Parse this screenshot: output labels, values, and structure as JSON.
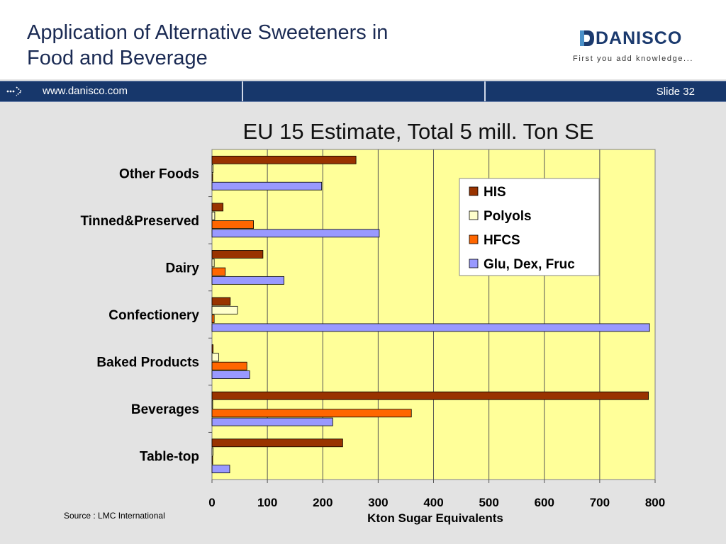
{
  "slide": {
    "title": "Application of Alternative Sweeteners in\nFood and Beverage",
    "brand": "DANISCO",
    "tagline": "First you add knowledge...",
    "url": "www.danisco.com",
    "slide_number": "Slide 32",
    "source": "Source : LMC International"
  },
  "colors": {
    "nav_bar": "#17376b",
    "plot_background": "#ffff99",
    "his": "#993300",
    "polyols": "#ffffcc",
    "hfcs": "#ff6600",
    "glu": "#9999ff"
  },
  "chart_data": {
    "type": "bar",
    "orientation": "horizontal",
    "title": "EU 15 Estimate, Total 5 mill. Ton SE",
    "xlabel": "Kton Sugar Equivalents",
    "ylabel": "",
    "xlim": [
      0,
      800
    ],
    "x_ticks": [
      "0",
      "100",
      "200",
      "300",
      "400",
      "500",
      "600",
      "700",
      "800"
    ],
    "grid": "vertical",
    "legend_position": "top-right",
    "categories": [
      "Other Foods",
      "Tinned&Preserved",
      "Dairy",
      "Confectionery",
      "Baked Products",
      "Beverages",
      "Table-top"
    ],
    "series": [
      {
        "name": "HIS",
        "color": "#993300",
        "values": [
          260,
          20,
          92,
          33,
          2,
          788,
          236
        ]
      },
      {
        "name": "Polyols",
        "color": "#ffffcc",
        "values": [
          2,
          5,
          4,
          46,
          12,
          0,
          2
        ]
      },
      {
        "name": "HFCS",
        "color": "#ff6600",
        "values": [
          0,
          75,
          24,
          4,
          63,
          360,
          0
        ]
      },
      {
        "name": "Glu, Dex, Fruc",
        "color": "#9999ff",
        "values": [
          198,
          302,
          130,
          790,
          68,
          218,
          32
        ]
      }
    ]
  }
}
